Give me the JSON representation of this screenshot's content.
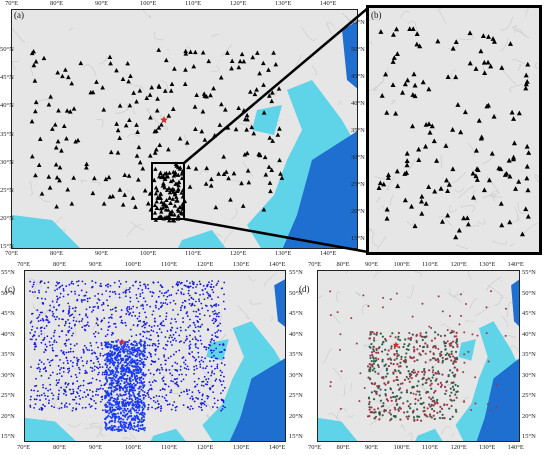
{
  "panels": {
    "a": {
      "label": "(a)"
    },
    "b": {
      "label": "(b)"
    },
    "c": {
      "label": "(c)"
    },
    "d": {
      "label": "(d)"
    }
  },
  "ticks": {
    "a_top": [
      "70°E",
      "80°E",
      "90°E",
      "100°E",
      "110°E",
      "120°E",
      "130°E",
      "140°E"
    ],
    "a_bottom": [
      "70°E",
      "80°E",
      "90°E",
      "100°E",
      "110°E",
      "120°E",
      "130°E",
      "140°E"
    ],
    "a_left": [
      "50°N",
      "45°N",
      "40°N",
      "35°N",
      "30°N",
      "25°N",
      "20°N",
      "15°N"
    ],
    "b_right": [
      "55°N",
      "50°N",
      "45°N",
      "40°N",
      "35°N",
      "30°N",
      "25°N",
      "20°N",
      "15°N"
    ],
    "c_top": [
      "70°E",
      "80°E",
      "90°E",
      "100°E",
      "110°E",
      "120°E",
      "130°E",
      "140°E"
    ],
    "c_bottom": [
      "70°E",
      "80°E",
      "90°E",
      "100°E",
      "110°E",
      "120°E",
      "130°E",
      "140°E"
    ],
    "c_left": [
      "55°N",
      "50°N",
      "45°N",
      "40°N",
      "35°N",
      "30°N",
      "25°N",
      "20°N",
      "15°N"
    ],
    "c_right": [
      "55°N",
      "50°N",
      "45°N",
      "40°N",
      "35°N",
      "30°N",
      "25°N",
      "20°N",
      "15°N"
    ],
    "d_top": [
      "70°E",
      "80°E",
      "90°E",
      "100°E",
      "110°E",
      "120°E",
      "130°E",
      "140°E"
    ],
    "d_bottom": [
      "70°E",
      "80°E",
      "90°E",
      "100°E",
      "110°E",
      "120°E",
      "130°E",
      "140°E"
    ],
    "d_left": [
      "55°N",
      "50°N",
      "45°N",
      "40°N",
      "35°N",
      "30°N",
      "25°N",
      "20°N",
      "15°N"
    ],
    "d_right": [
      "55°N",
      "50°N",
      "45°N",
      "40°N",
      "35°N",
      "30°N",
      "25°N",
      "20°N",
      "15°N"
    ]
  },
  "colors": {
    "land": "#e6e6e6",
    "sea_shallow": "#5fd3e8",
    "sea_deep": "#1f6fd1",
    "station": "#000000",
    "event_blue": "#1515d8",
    "star": "#d42a2a",
    "event_red": "#9a3a4a",
    "event_green": "#2f5f4a"
  },
  "icons": {
    "station": "triangle-icon",
    "epicenter": "star-icon"
  }
}
